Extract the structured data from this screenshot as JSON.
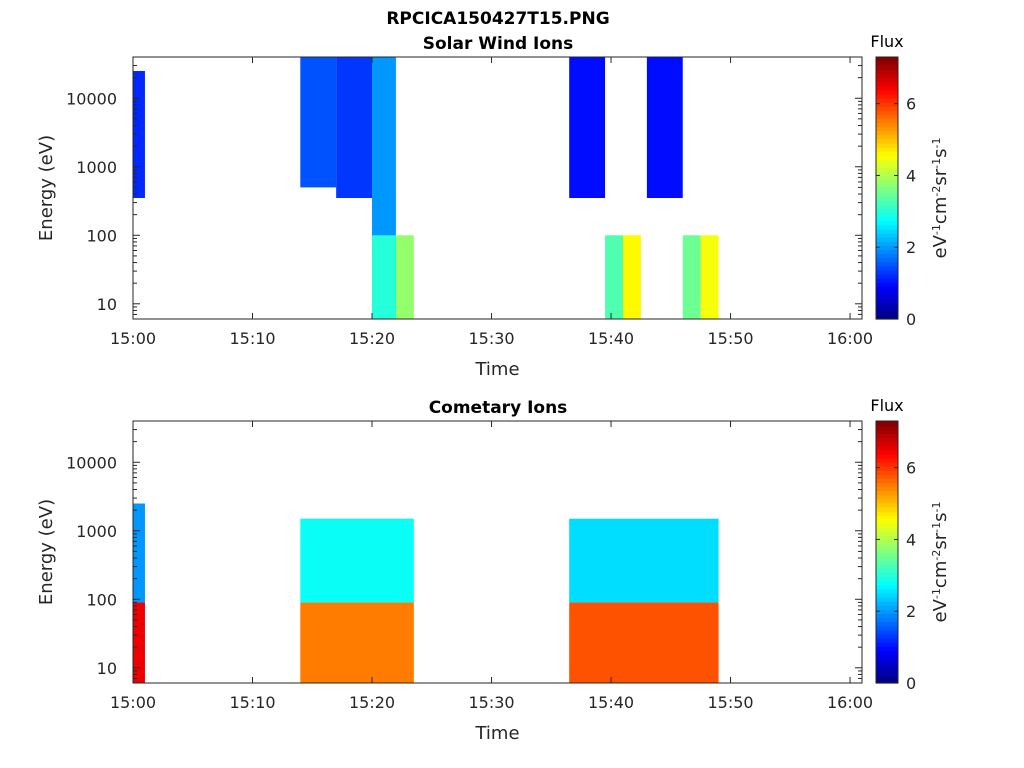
{
  "figure_title": "RPCICA150427T15.PNG",
  "chart_data": [
    {
      "type": "heatmap",
      "title": "Solar Wind Ions",
      "xlabel": "Time",
      "ylabel": "Energy (eV)",
      "x_range": [
        "15:00",
        "16:01"
      ],
      "x_ticks": [
        "15:00",
        "15:10",
        "15:20",
        "15:30",
        "15:40",
        "15:50",
        "16:00"
      ],
      "y_scale": "log",
      "y_range": [
        6,
        40000
      ],
      "y_ticks": [
        {
          "value": 10,
          "label": "10"
        },
        {
          "value": 100,
          "label": "100"
        },
        {
          "value": 1000,
          "label": "1000"
        },
        {
          "value": 10000,
          "label": "10000"
        }
      ],
      "colorbar": {
        "title": "Flux",
        "unit": "eV-1cm-2sr-1s-1",
        "range": [
          0,
          7.3
        ],
        "ticks": [
          "0",
          "2",
          "4",
          "6"
        ],
        "colormap": "jet"
      },
      "cells": [
        {
          "t": [
            "15:00",
            "15:01"
          ],
          "e": [
            350,
            25000
          ],
          "flux": 1.2
        },
        {
          "t": [
            "15:14",
            "15:17"
          ],
          "e": [
            500,
            40000
          ],
          "flux": 1.5
        },
        {
          "t": [
            "15:17",
            "15:20"
          ],
          "e": [
            350,
            40000
          ],
          "flux": 1.3
        },
        {
          "t": [
            "15:20",
            "15:22"
          ],
          "e": [
            6,
            40000
          ],
          "flux": 2.0
        },
        {
          "t": [
            "15:20",
            "15:22"
          ],
          "e": [
            6,
            100
          ],
          "flux": 3.0
        },
        {
          "t": [
            "15:22",
            "15:23.5"
          ],
          "e": [
            6,
            100
          ],
          "flux": 3.8
        },
        {
          "t": [
            "15:36.5",
            "15:39.5"
          ],
          "e": [
            350,
            40000
          ],
          "flux": 1.0
        },
        {
          "t": [
            "15:39.5",
            "15:41"
          ],
          "e": [
            6,
            100
          ],
          "flux": 3.3
        },
        {
          "t": [
            "15:41",
            "15:42.5"
          ],
          "e": [
            6,
            100
          ],
          "flux": 4.6
        },
        {
          "t": [
            "15:43",
            "15:46"
          ],
          "e": [
            350,
            40000
          ],
          "flux": 1.0
        },
        {
          "t": [
            "15:46",
            "15:47.5"
          ],
          "e": [
            6,
            100
          ],
          "flux": 3.5
        },
        {
          "t": [
            "15:47.5",
            "15:49"
          ],
          "e": [
            6,
            100
          ],
          "flux": 4.5
        }
      ]
    },
    {
      "type": "heatmap",
      "title": "Cometary Ions",
      "xlabel": "Time",
      "ylabel": "Energy (eV)",
      "x_range": [
        "15:00",
        "16:01"
      ],
      "x_ticks": [
        "15:00",
        "15:10",
        "15:20",
        "15:30",
        "15:40",
        "15:50",
        "16:00"
      ],
      "y_scale": "log",
      "y_range": [
        6,
        40000
      ],
      "y_ticks": [
        {
          "value": 10,
          "label": "10"
        },
        {
          "value": 100,
          "label": "100"
        },
        {
          "value": 1000,
          "label": "1000"
        },
        {
          "value": 10000,
          "label": "10000"
        }
      ],
      "colorbar": {
        "title": "Flux",
        "unit": "eV-1cm-2sr-1s-1",
        "range": [
          0,
          7.3
        ],
        "ticks": [
          "0",
          "2",
          "4",
          "6"
        ],
        "colormap": "jet"
      },
      "cells": [
        {
          "t": [
            "15:00",
            "15:01"
          ],
          "e": [
            6,
            90
          ],
          "flux": 6.5
        },
        {
          "t": [
            "15:00",
            "15:01"
          ],
          "e": [
            90,
            2500
          ],
          "flux": 2.0
        },
        {
          "t": [
            "15:14",
            "15:23.5"
          ],
          "e": [
            6,
            90
          ],
          "flux": 5.5
        },
        {
          "t": [
            "15:14",
            "15:23.5"
          ],
          "e": [
            90,
            1500
          ],
          "flux": 2.8
        },
        {
          "t": [
            "15:36.5",
            "15:49"
          ],
          "e": [
            6,
            90
          ],
          "flux": 5.8
        },
        {
          "t": [
            "15:36.5",
            "15:49"
          ],
          "e": [
            90,
            1500
          ],
          "flux": 2.5
        }
      ]
    }
  ]
}
